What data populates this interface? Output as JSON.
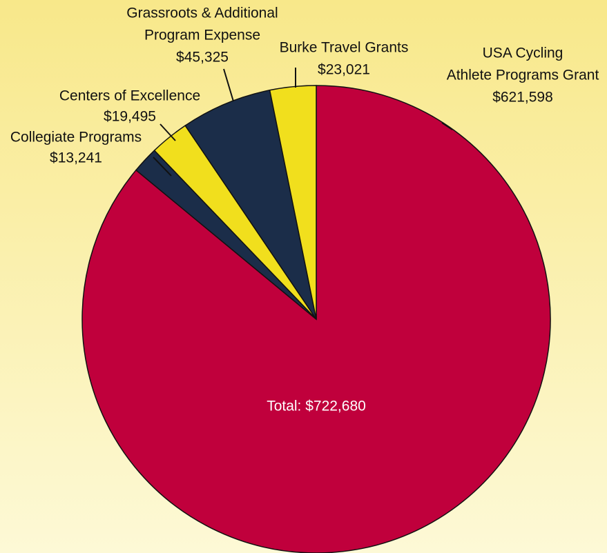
{
  "chart_data": {
    "type": "pie",
    "categories": [
      [
        "USA Cycling",
        "Athlete Programs Grant"
      ],
      [
        "Collegiate Programs"
      ],
      [
        "Centers of Excellence"
      ],
      [
        "Grassroots & Additional",
        "Program Expense"
      ],
      [
        "Burke Travel Grants"
      ]
    ],
    "values": [
      621598,
      13241,
      19495,
      45325,
      23021
    ],
    "value_labels": [
      "$621,598",
      "$13,241",
      "$19,495",
      "$45,325",
      "$23,021"
    ],
    "colors": [
      "#c0003c",
      "#1b2d49",
      "#f1df1d",
      "#1b2d49",
      "#f1df1d"
    ],
    "total_label": "Total: $722,680"
  }
}
